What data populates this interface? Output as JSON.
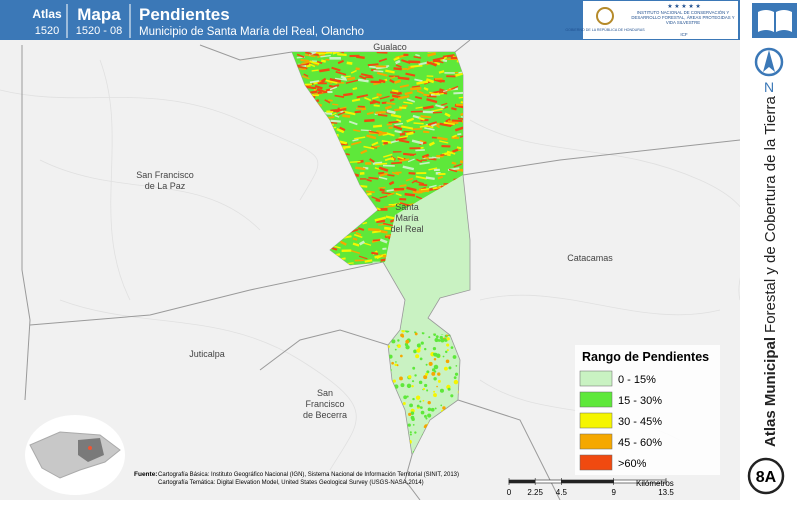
{
  "header": {
    "atlas_label": "Atlas",
    "atlas_number": "1520",
    "map_label": "Mapa",
    "map_number": "1520 - 08",
    "title": "Pendientes",
    "subtitle": "Municipio de Santa María del Real, Olancho"
  },
  "logos": {
    "government": "GOBIERNO DE LA REPÚBLICA DE HONDURAS",
    "institute": "INSTITUTO NACIONAL DE CONSERVACIÓN Y DESARROLLO FORESTAL, ÁREAS PROTEGIDAS Y VIDA SILVESTRE",
    "acronym": "ICF"
  },
  "sidebar": {
    "north": "N",
    "title_bold": "Atlas Municipal",
    "title_rest": "Forestal y de Cobertura de la Tierra",
    "sheet": "8A"
  },
  "places": [
    [
      "Gualaco"
    ],
    [
      "San Francisco",
      "de La Paz"
    ],
    [
      "Santa",
      "María",
      "del Real"
    ],
    [
      "Catacamas"
    ],
    [
      "Juticalpa"
    ],
    [
      "San",
      "Francisco",
      "de Becerra"
    ]
  ],
  "legend": {
    "title": "Rango de Pendientes",
    "items": [
      {
        "label": "0 - 15%",
        "color": "#c9f2c2"
      },
      {
        "label": "15 - 30%",
        "color": "#5ee83a"
      },
      {
        "label": "30 - 45%",
        "color": "#f5f500"
      },
      {
        "label": "45 - 60%",
        "color": "#f5a800"
      },
      {
        "label": ">60%",
        "color": "#f04a10"
      }
    ]
  },
  "source": {
    "label": "Fuente:",
    "lines": [
      "Cartografía Básica: Instituto Geográfico Nacional (IGN), Sistema Nacional de Información Territorial (SINIT, 2013)",
      "Cartografía Temática: Digital Elevation Model, United States Geological Survey (USGS-NASA,2014)"
    ]
  },
  "scale": {
    "ticks": [
      0,
      2.25,
      4.5,
      9,
      13.5
    ],
    "unit": "Kilómetros"
  }
}
